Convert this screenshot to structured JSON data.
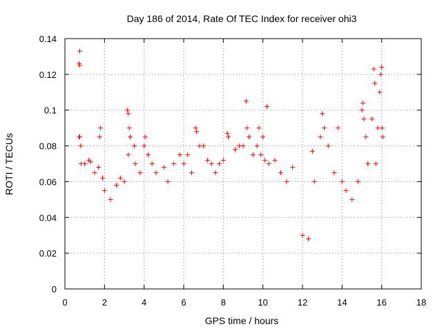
{
  "chart_data": {
    "type": "scatter",
    "title": "Day 186 of 2014, Rate Of TEC Index for receiver ohi3",
    "xlabel": "GPS time / hours",
    "ylabel": "ROTI / TECUs",
    "xlim": [
      0,
      18
    ],
    "ylim": [
      0,
      0.14
    ],
    "x_ticks": [
      0,
      2,
      4,
      6,
      8,
      10,
      12,
      14,
      16,
      18
    ],
    "y_ticks": [
      0,
      0.02,
      0.04,
      0.06,
      0.08,
      0.1,
      0.12,
      0.14
    ],
    "x_tick_labels": [
      "0",
      "2",
      "4",
      "6",
      "8",
      "10",
      "12",
      "14",
      "16",
      "18"
    ],
    "y_tick_labels": [
      "0",
      "0.02",
      "0.04",
      "0.06",
      "0.08",
      "0.1",
      "0.12",
      "0.14"
    ],
    "grid": true,
    "marker": "+",
    "color": "#ff0000",
    "series": [
      {
        "name": "ROTI",
        "points": [
          [
            0.75,
            0.133
          ],
          [
            0.72,
            0.126
          ],
          [
            0.74,
            0.125
          ],
          [
            0.72,
            0.085
          ],
          [
            0.75,
            0.085
          ],
          [
            0.8,
            0.08
          ],
          [
            0.82,
            0.07
          ],
          [
            1.0,
            0.07
          ],
          [
            1.2,
            0.072
          ],
          [
            1.3,
            0.071
          ],
          [
            1.5,
            0.065
          ],
          [
            1.7,
            0.068
          ],
          [
            1.75,
            0.085
          ],
          [
            1.8,
            0.09
          ],
          [
            1.9,
            0.062
          ],
          [
            2.0,
            0.055
          ],
          [
            2.3,
            0.05
          ],
          [
            2.6,
            0.058
          ],
          [
            2.8,
            0.062
          ],
          [
            3.0,
            0.06
          ],
          [
            3.15,
            0.1
          ],
          [
            3.2,
            0.098
          ],
          [
            3.25,
            0.09
          ],
          [
            3.3,
            0.085
          ],
          [
            3.2,
            0.075
          ],
          [
            3.5,
            0.08
          ],
          [
            3.55,
            0.07
          ],
          [
            3.8,
            0.065
          ],
          [
            4.0,
            0.08
          ],
          [
            4.05,
            0.085
          ],
          [
            4.2,
            0.075
          ],
          [
            4.4,
            0.07
          ],
          [
            4.6,
            0.065
          ],
          [
            5.0,
            0.068
          ],
          [
            5.2,
            0.06
          ],
          [
            5.5,
            0.07
          ],
          [
            5.8,
            0.075
          ],
          [
            6.0,
            0.07
          ],
          [
            6.2,
            0.075
          ],
          [
            6.4,
            0.065
          ],
          [
            6.6,
            0.09
          ],
          [
            6.65,
            0.088
          ],
          [
            6.8,
            0.08
          ],
          [
            7.0,
            0.08
          ],
          [
            7.2,
            0.072
          ],
          [
            7.4,
            0.07
          ],
          [
            7.6,
            0.065
          ],
          [
            7.8,
            0.07
          ],
          [
            8.0,
            0.072
          ],
          [
            8.2,
            0.087
          ],
          [
            8.25,
            0.085
          ],
          [
            8.6,
            0.078
          ],
          [
            8.8,
            0.08
          ],
          [
            9.0,
            0.08
          ],
          [
            9.15,
            0.105
          ],
          [
            9.2,
            0.09
          ],
          [
            9.3,
            0.085
          ],
          [
            9.5,
            0.075
          ],
          [
            9.7,
            0.08
          ],
          [
            9.8,
            0.09
          ],
          [
            9.9,
            0.075
          ],
          [
            10.0,
            0.085
          ],
          [
            10.1,
            0.072
          ],
          [
            10.2,
            0.102
          ],
          [
            10.3,
            0.07
          ],
          [
            10.6,
            0.072
          ],
          [
            10.9,
            0.065
          ],
          [
            11.2,
            0.06
          ],
          [
            11.5,
            0.068
          ],
          [
            12.0,
            0.03
          ],
          [
            12.3,
            0.028
          ],
          [
            12.5,
            0.077
          ],
          [
            12.6,
            0.06
          ],
          [
            12.9,
            0.085
          ],
          [
            13.0,
            0.098
          ],
          [
            13.1,
            0.09
          ],
          [
            13.3,
            0.08
          ],
          [
            13.6,
            0.065
          ],
          [
            13.8,
            0.09
          ],
          [
            14.0,
            0.06
          ],
          [
            14.2,
            0.055
          ],
          [
            14.5,
            0.05
          ],
          [
            14.8,
            0.06
          ],
          [
            15.0,
            0.1
          ],
          [
            15.05,
            0.104
          ],
          [
            15.1,
            0.095
          ],
          [
            15.2,
            0.085
          ],
          [
            15.3,
            0.07
          ],
          [
            15.5,
            0.095
          ],
          [
            15.6,
            0.123
          ],
          [
            15.65,
            0.115
          ],
          [
            15.7,
            0.07
          ],
          [
            15.8,
            0.09
          ],
          [
            15.9,
            0.11
          ],
          [
            15.95,
            0.12
          ],
          [
            16.0,
            0.124
          ],
          [
            16.02,
            0.09
          ],
          [
            16.05,
            0.085
          ]
        ]
      }
    ]
  }
}
